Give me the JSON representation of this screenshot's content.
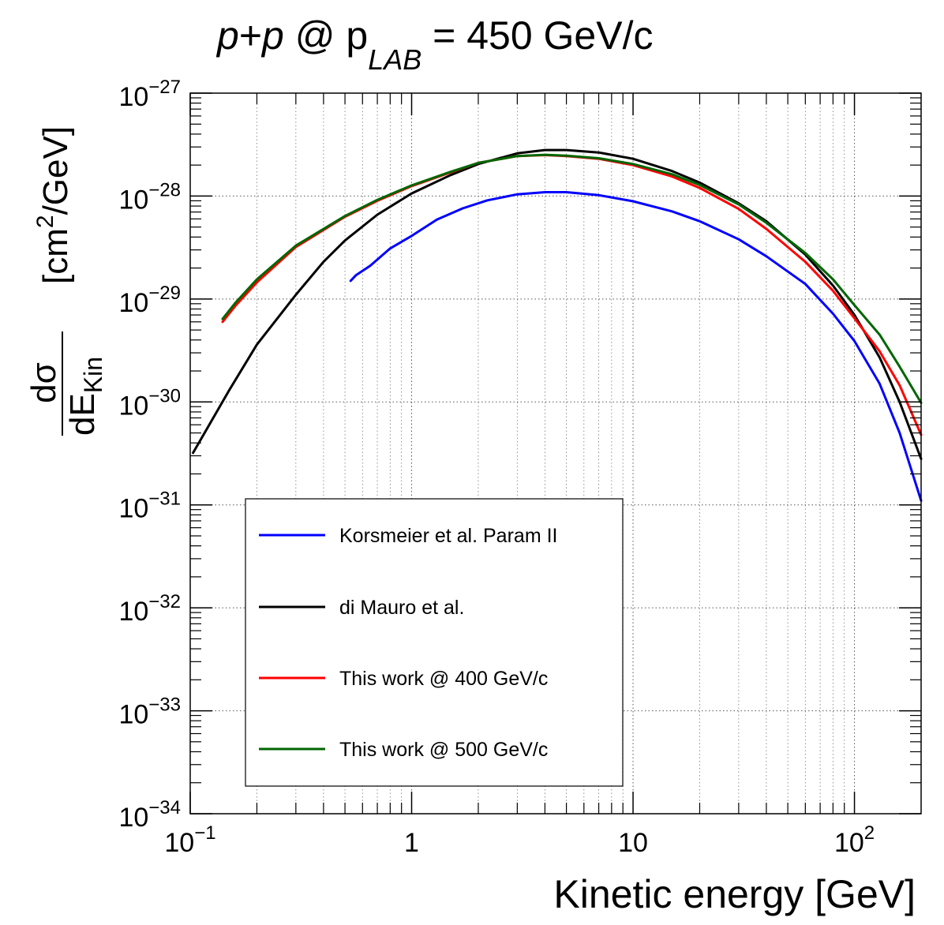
{
  "chart_data": {
    "type": "line",
    "title": {
      "p1": "p",
      "plus": "+",
      "p2": "p",
      "at": " @ p",
      "sub": "LAB",
      "rest": " = 450 GeV/c"
    },
    "xlabel": "Kinetic energy [GeV]",
    "ylabel": {
      "num": "dσ",
      "den_main": "dE",
      "den_sub": "Kin",
      "unit_pre": "[cm",
      "unit_sup": "2",
      "unit_post": "/GeV]"
    },
    "x_scale": "log",
    "y_scale": "log",
    "xlim": [
      0.1,
      200
    ],
    "ylim": [
      1e-34,
      1e-27
    ],
    "grid": true,
    "x_ticks": [
      {
        "value": 0.1,
        "base": "10",
        "exp": "−1"
      },
      {
        "value": 1,
        "base": "1",
        "exp": ""
      },
      {
        "value": 10,
        "base": "10",
        "exp": ""
      },
      {
        "value": 100,
        "base": "10",
        "exp": "2"
      }
    ],
    "y_ticks": [
      {
        "value": 1e-27,
        "base": "10",
        "exp": "−27"
      },
      {
        "value": 1e-28,
        "base": "10",
        "exp": "−28"
      },
      {
        "value": 1e-29,
        "base": "10",
        "exp": "−29"
      },
      {
        "value": 1e-30,
        "base": "10",
        "exp": "−30"
      },
      {
        "value": 1e-31,
        "base": "10",
        "exp": "−31"
      },
      {
        "value": 1e-32,
        "base": "10",
        "exp": "−32"
      },
      {
        "value": 1e-33,
        "base": "10",
        "exp": "−33"
      },
      {
        "value": 1e-34,
        "base": "10",
        "exp": "−34"
      }
    ],
    "legend_position": "lower-left",
    "series": [
      {
        "name": "Korsmeier et al. Param II",
        "color": "#0000ff",
        "points": [
          [
            0.53,
            1.5e-29
          ],
          [
            0.56,
            1.7e-29
          ],
          [
            0.65,
            2.1e-29
          ],
          [
            0.8,
            3.1e-29
          ],
          [
            1.0,
            4.1e-29
          ],
          [
            1.3,
            5.9e-29
          ],
          [
            1.7,
            7.6e-29
          ],
          [
            2.2,
            9.1e-29
          ],
          [
            3.0,
            1.04e-28
          ],
          [
            4.0,
            1.09e-28
          ],
          [
            5.0,
            1.09e-28
          ],
          [
            7.0,
            1.02e-28
          ],
          [
            10.0,
            8.9e-29
          ],
          [
            15.0,
            7.1e-29
          ],
          [
            20.0,
            5.7e-29
          ],
          [
            30.0,
            3.8e-29
          ],
          [
            40.0,
            2.6e-29
          ],
          [
            60.0,
            1.4e-29
          ],
          [
            80.0,
            7.2e-30
          ],
          [
            100.0,
            3.9e-30
          ],
          [
            130.0,
            1.5e-30
          ],
          [
            160.0,
            5e-31
          ],
          [
            200.0,
            1.1e-31
          ]
        ]
      },
      {
        "name": "di Mauro et al.",
        "color": "#000000",
        "points": [
          [
            0.103,
            3.2e-31
          ],
          [
            0.15,
            1.3e-30
          ],
          [
            0.2,
            3.6e-30
          ],
          [
            0.3,
            1.1e-29
          ],
          [
            0.4,
            2.3e-29
          ],
          [
            0.5,
            3.7e-29
          ],
          [
            0.7,
            6.6e-29
          ],
          [
            1.0,
            1.06e-28
          ],
          [
            1.5,
            1.6e-28
          ],
          [
            2.0,
            2.05e-28
          ],
          [
            3.0,
            2.6e-28
          ],
          [
            4.0,
            2.8e-28
          ],
          [
            5.0,
            2.8e-28
          ],
          [
            7.0,
            2.65e-28
          ],
          [
            10.0,
            2.3e-28
          ],
          [
            15.0,
            1.75e-28
          ],
          [
            20.0,
            1.35e-28
          ],
          [
            30.0,
            8.5e-29
          ],
          [
            40.0,
            5.7e-29
          ],
          [
            60.0,
            2.7e-29
          ],
          [
            80.0,
            1.35e-29
          ],
          [
            100.0,
            7e-30
          ],
          [
            130.0,
            2.7e-30
          ],
          [
            160.0,
            1e-30
          ],
          [
            200.0,
            2.8e-31
          ]
        ]
      },
      {
        "name": "This work @ 400 GeV/c",
        "color": "#ff0000",
        "points": [
          [
            0.14,
            6e-30
          ],
          [
            0.16,
            8.6e-30
          ],
          [
            0.2,
            1.45e-29
          ],
          [
            0.3,
            3.2e-29
          ],
          [
            0.5,
            6.3e-29
          ],
          [
            0.7,
            9e-29
          ],
          [
            1.0,
            1.25e-28
          ],
          [
            1.5,
            1.7e-28
          ],
          [
            2.0,
            2.1e-28
          ],
          [
            3.0,
            2.45e-28
          ],
          [
            4.0,
            2.5e-28
          ],
          [
            5.0,
            2.45e-28
          ],
          [
            7.0,
            2.3e-28
          ],
          [
            10.0,
            2e-28
          ],
          [
            15.0,
            1.55e-28
          ],
          [
            20.0,
            1.2e-28
          ],
          [
            30.0,
            7.5e-29
          ],
          [
            40.0,
            4.8e-29
          ],
          [
            60.0,
            2.3e-29
          ],
          [
            80.0,
            1.2e-29
          ],
          [
            100.0,
            6.5e-30
          ],
          [
            130.0,
            3.1e-30
          ],
          [
            160.0,
            1.45e-30
          ],
          [
            200.0,
            4.8e-31
          ]
        ]
      },
      {
        "name": "This work @ 500 GeV/c",
        "color": "#006600",
        "points": [
          [
            0.14,
            6.4e-30
          ],
          [
            0.16,
            9.2e-30
          ],
          [
            0.2,
            1.55e-29
          ],
          [
            0.3,
            3.3e-29
          ],
          [
            0.5,
            6.4e-29
          ],
          [
            0.7,
            9.2e-29
          ],
          [
            1.0,
            1.27e-28
          ],
          [
            1.5,
            1.72e-28
          ],
          [
            2.0,
            2.1e-28
          ],
          [
            3.0,
            2.45e-28
          ],
          [
            4.0,
            2.52e-28
          ],
          [
            5.0,
            2.47e-28
          ],
          [
            7.0,
            2.33e-28
          ],
          [
            10.0,
            2.05e-28
          ],
          [
            15.0,
            1.63e-28
          ],
          [
            20.0,
            1.28e-28
          ],
          [
            30.0,
            8.3e-29
          ],
          [
            40.0,
            5.5e-29
          ],
          [
            60.0,
            2.8e-29
          ],
          [
            80.0,
            1.55e-29
          ],
          [
            100.0,
            8.7e-30
          ],
          [
            130.0,
            4.5e-30
          ],
          [
            160.0,
            2.2e-30
          ],
          [
            200.0,
            9.8e-31
          ]
        ]
      }
    ]
  }
}
